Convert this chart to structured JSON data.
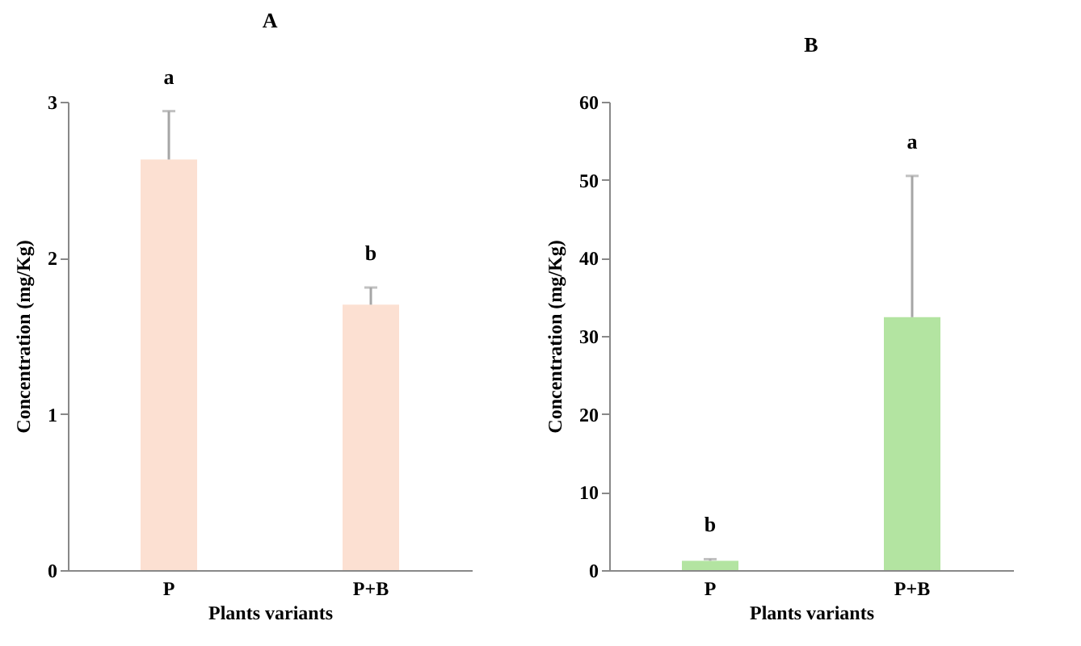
{
  "chart_data": [
    {
      "type": "bar",
      "title": "A",
      "xlabel": "Plants variants",
      "ylabel": "Concentration (mg/Kg)",
      "categories": [
        "P",
        "P+B"
      ],
      "values": [
        2.63,
        1.7
      ],
      "errors": [
        [
          2.63,
          2.94
        ],
        [
          1.7,
          1.81
        ]
      ],
      "color": "#fce0d2",
      "ylim": [
        0,
        3
      ],
      "yticks": [
        0,
        1,
        2,
        3
      ],
      "annotations": [
        {
          "text": "a",
          "x": "P",
          "y": 2.94
        },
        {
          "text": "b",
          "x": "P+B",
          "y": 1.81
        }
      ]
    },
    {
      "type": "bar",
      "title": "B",
      "xlabel": "Plants variants",
      "ylabel": "Concentration (mg/Kg)",
      "categories": [
        "P",
        "P+B"
      ],
      "values": [
        1.2,
        32.4
      ],
      "errors": [
        [
          1.2,
          1.4
        ],
        [
          32.4,
          50.5
        ]
      ],
      "color": "#b3e4a1",
      "ylim": [
        0,
        60
      ],
      "yticks": [
        0,
        10,
        20,
        30,
        40,
        50,
        60
      ],
      "annotations": [
        {
          "text": "b",
          "x": "P",
          "y": 1.4
        },
        {
          "text": "a",
          "x": "P+B",
          "y": 50.5
        }
      ]
    }
  ]
}
